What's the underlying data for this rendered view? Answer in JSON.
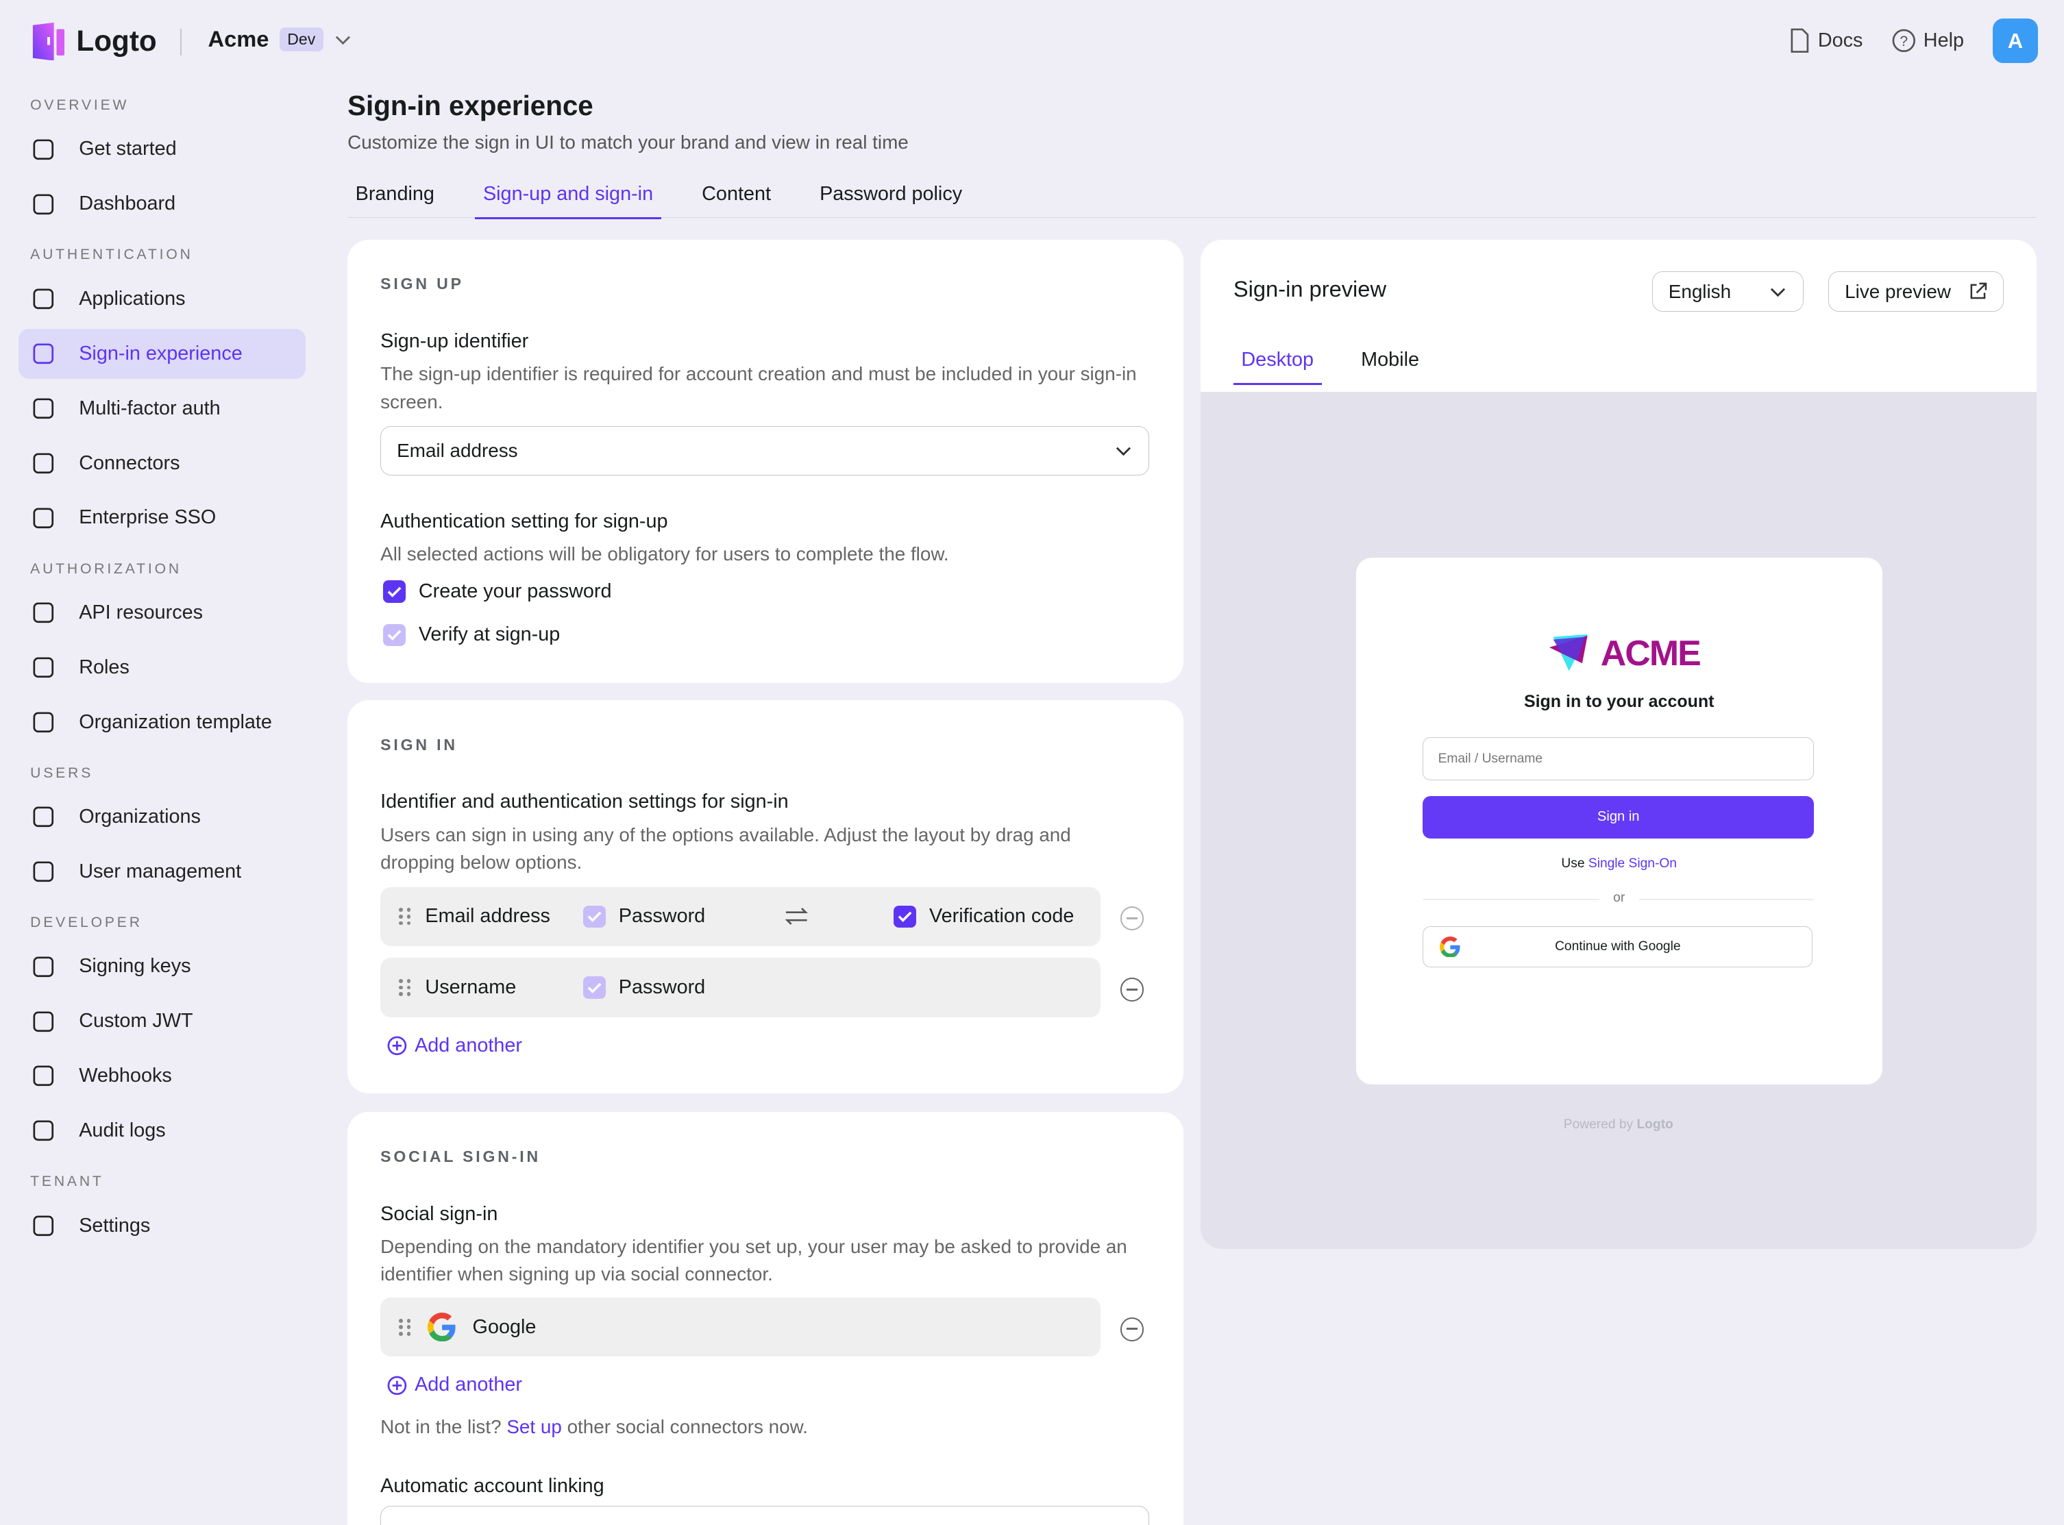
{
  "app": {
    "name": "Logto",
    "tenant": "Acme",
    "tenant_badge": "Dev",
    "docs": "Docs",
    "help": "Help",
    "avatar_initial": "A",
    "accent": "#5d34f2"
  },
  "sidebar": {
    "sections": [
      {
        "title": "OVERVIEW",
        "items": [
          {
            "label": "Get started",
            "icon": "bolt-icon"
          },
          {
            "label": "Dashboard",
            "icon": "chart-icon"
          }
        ]
      },
      {
        "title": "AUTHENTICATION",
        "items": [
          {
            "label": "Applications",
            "icon": "cube-icon"
          },
          {
            "label": "Sign-in experience",
            "icon": "window-icon",
            "active": true
          },
          {
            "label": "Multi-factor auth",
            "icon": "lock-icon"
          },
          {
            "label": "Connectors",
            "icon": "connector-icon"
          },
          {
            "label": "Enterprise SSO",
            "icon": "cloud-key-icon"
          }
        ]
      },
      {
        "title": "AUTHORIZATION",
        "items": [
          {
            "label": "API resources",
            "icon": "api-icon"
          },
          {
            "label": "Roles",
            "icon": "role-icon"
          },
          {
            "label": "Organization template",
            "icon": "org-template-icon"
          }
        ]
      },
      {
        "title": "USERS",
        "items": [
          {
            "label": "Organizations",
            "icon": "organization-icon"
          },
          {
            "label": "User management",
            "icon": "user-icon"
          }
        ]
      },
      {
        "title": "DEVELOPER",
        "items": [
          {
            "label": "Signing keys",
            "icon": "key-icon"
          },
          {
            "label": "Custom JWT",
            "icon": "gear-code-icon"
          },
          {
            "label": "Webhooks",
            "icon": "webhook-icon"
          },
          {
            "label": "Audit logs",
            "icon": "list-icon"
          }
        ]
      },
      {
        "title": "TENANT",
        "items": [
          {
            "label": "Settings",
            "icon": "gear-icon"
          }
        ]
      }
    ]
  },
  "page": {
    "title": "Sign-in experience",
    "subtitle": "Customize the sign in UI to match your brand and view in real time",
    "tabs": [
      "Branding",
      "Sign-up and sign-in",
      "Content",
      "Password policy"
    ],
    "active_tab": 1
  },
  "signup": {
    "section": "SIGN UP",
    "identifier_title": "Sign-up identifier",
    "identifier_desc": "The sign-up identifier is required for account creation and must be included in your sign-in screen.",
    "identifier_value": "Email address",
    "auth_title": "Authentication setting for sign-up",
    "auth_desc": "All selected actions will be obligatory for users to complete the flow.",
    "options": [
      {
        "label": "Create your password",
        "checked": true
      },
      {
        "label": "Verify at sign-up",
        "checked": true,
        "disabled": true
      }
    ]
  },
  "signin": {
    "section": "SIGN IN",
    "title": "Identifier and authentication settings for sign-in",
    "desc": "Users can sign in using any of the options available. Adjust the layout by drag and dropping below options.",
    "rows": [
      {
        "identifier": "Email address",
        "password": "Password",
        "verification": "Verification code"
      },
      {
        "identifier": "Username",
        "password": "Password"
      }
    ],
    "add": "Add another"
  },
  "social": {
    "section": "SOCIAL SIGN-IN",
    "title": "Social sign-in",
    "desc": "Depending on the mandatory identifier you set up, your user may be asked to provide an identifier when signing up via social connector.",
    "connector": "Google",
    "add": "Add another",
    "note_pre": "Not in the list?",
    "note_link": "Set up",
    "note_post": "other social connectors now.",
    "linking_title": "Automatic account linking"
  },
  "preview": {
    "title": "Sign-in preview",
    "language": "English",
    "live": "Live preview",
    "tabs": [
      "Desktop",
      "Mobile"
    ],
    "active_tab": 0,
    "brand": "ACME",
    "heading": "Sign in to your account",
    "input_placeholder": "Email / Username",
    "sign_in": "Sign in",
    "sso_pre": "Use",
    "sso_link": "Single Sign-On",
    "or": "or",
    "google": "Continue with Google",
    "powered": "Powered by",
    "powered_brand": "Logto"
  }
}
